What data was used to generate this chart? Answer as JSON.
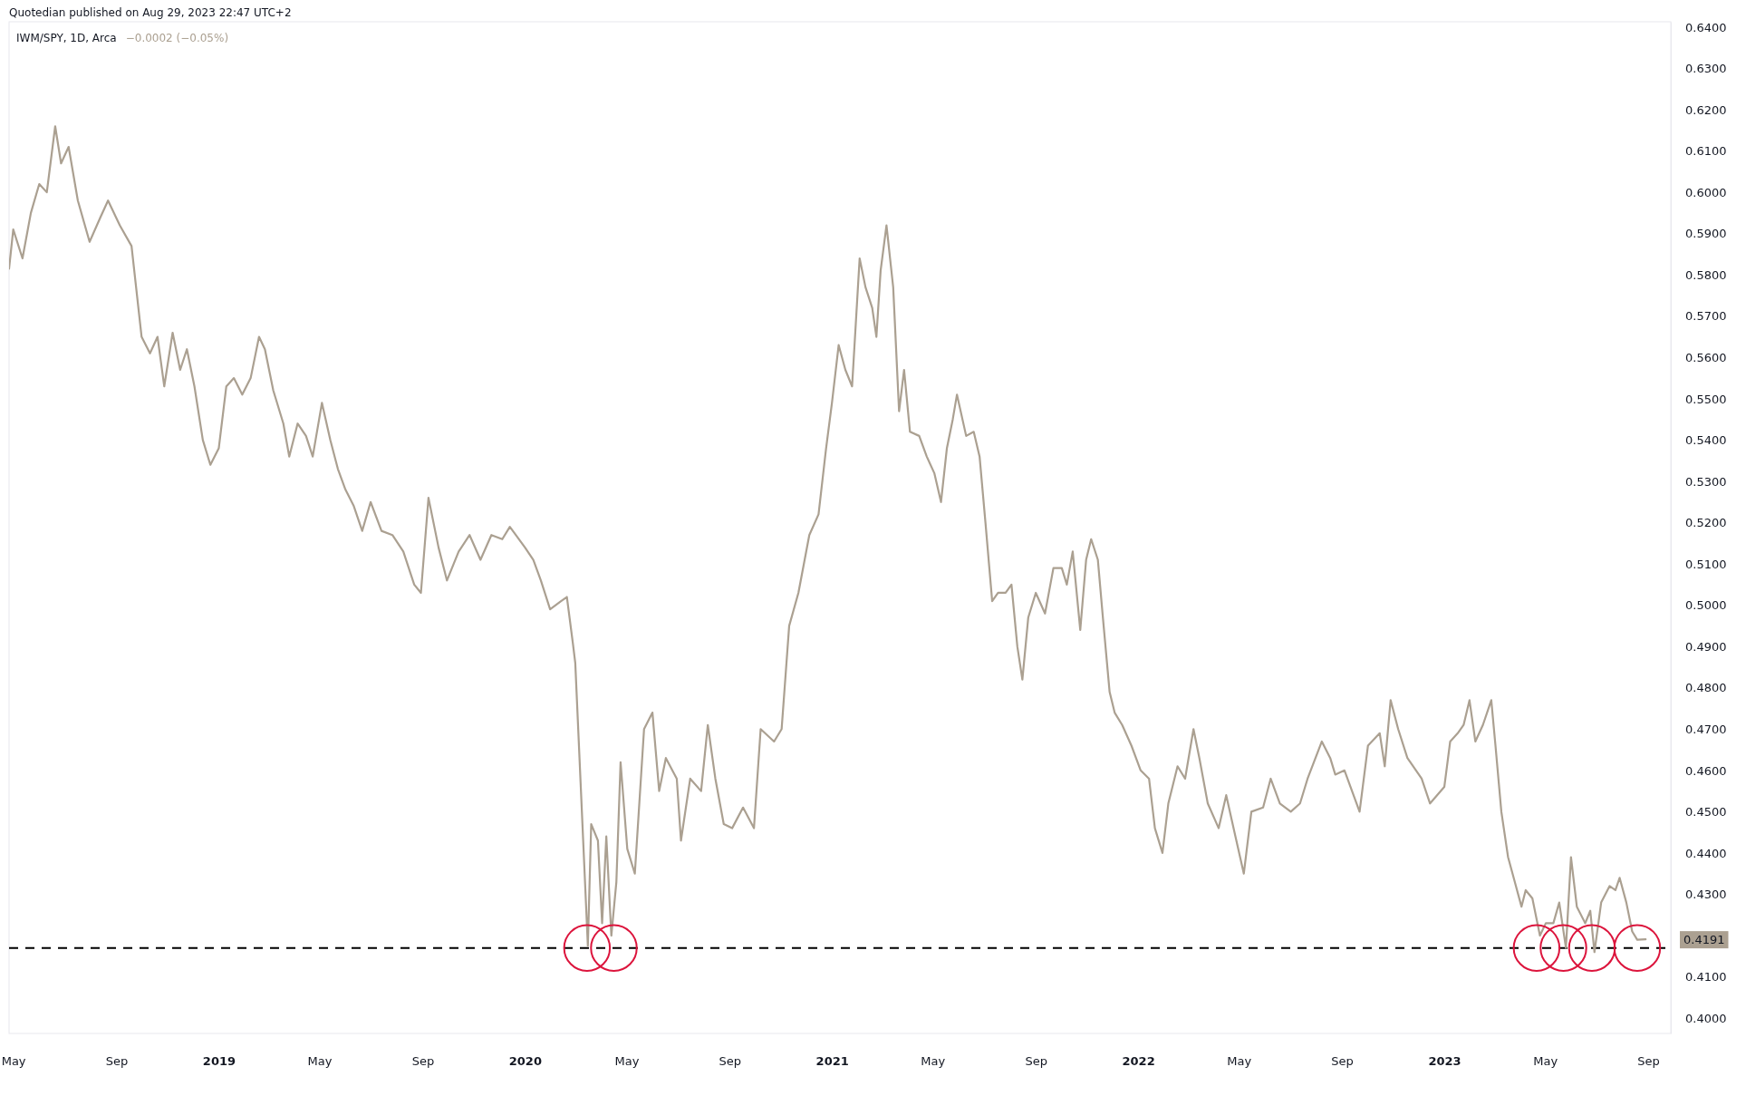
{
  "chart_data": {
    "type": "line",
    "title": "IWM/SPY, 1D, Arca",
    "subtitle": "−0.0002 (−0.05%)",
    "annotations": [
      "Quotedian published on Aug 29, 2023 22:47 UTC+2",
      "0.4191"
    ],
    "xlim": [
      "2018-04-26",
      "2023-09-28"
    ],
    "xticks": [
      {
        "value": "2018-05-01",
        "label": "May"
      },
      {
        "value": "2018-09-01",
        "label": "Sep"
      },
      {
        "value": "2019-01-01",
        "label": "2019"
      },
      {
        "value": "2019-05-01",
        "label": "May"
      },
      {
        "value": "2019-09-01",
        "label": "Sep"
      },
      {
        "value": "2020-01-01",
        "label": "2020"
      },
      {
        "value": "2020-05-01",
        "label": "May"
      },
      {
        "value": "2020-09-01",
        "label": "Sep"
      },
      {
        "value": "2021-01-01",
        "label": "2021"
      },
      {
        "value": "2021-05-01",
        "label": "May"
      },
      {
        "value": "2021-09-01",
        "label": "Sep"
      },
      {
        "value": "2022-01-01",
        "label": "2022"
      },
      {
        "value": "2022-05-01",
        "label": "May"
      },
      {
        "value": "2022-09-01",
        "label": "Sep"
      },
      {
        "value": "2023-01-01",
        "label": "2023"
      },
      {
        "value": "2023-05-01",
        "label": "May"
      },
      {
        "value": "2023-09-01",
        "label": "Sep"
      }
    ],
    "ylim": [
      0.3963,
      0.6413
    ],
    "yticks": [
      {
        "value": 0.4,
        "label": "0.4000"
      },
      {
        "value": 0.41,
        "label": "0.4100"
      },
      {
        "value": 0.43,
        "label": "0.4300"
      },
      {
        "value": 0.44,
        "label": "0.4400"
      },
      {
        "value": 0.45,
        "label": "0.4500"
      },
      {
        "value": 0.46,
        "label": "0.4600"
      },
      {
        "value": 0.47,
        "label": "0.4700"
      },
      {
        "value": 0.48,
        "label": "0.4800"
      },
      {
        "value": 0.49,
        "label": "0.4900"
      },
      {
        "value": 0.5,
        "label": "0.5000"
      },
      {
        "value": 0.51,
        "label": "0.5100"
      },
      {
        "value": 0.52,
        "label": "0.5200"
      },
      {
        "value": 0.53,
        "label": "0.5300"
      },
      {
        "value": 0.54,
        "label": "0.5400"
      },
      {
        "value": 0.55,
        "label": "0.5500"
      },
      {
        "value": 0.56,
        "label": "0.5600"
      },
      {
        "value": 0.57,
        "label": "0.5700"
      },
      {
        "value": 0.58,
        "label": "0.5800"
      },
      {
        "value": 0.59,
        "label": "0.5900"
      },
      {
        "value": 0.6,
        "label": "0.6000"
      },
      {
        "value": 0.61,
        "label": "0.6100"
      },
      {
        "value": 0.62,
        "label": "0.6200"
      },
      {
        "value": 0.63,
        "label": "0.6300"
      },
      {
        "value": 0.64,
        "label": "0.6400"
      }
    ],
    "grid": false,
    "ref_lines": [
      {
        "axis": "y",
        "value": 0.417,
        "color": "#000000",
        "line_style": "dashed"
      }
    ],
    "series": [
      {
        "color": "#aba091",
        "line_style": "solid",
        "marker": "none",
        "x": [
          "2018-04-26",
          "2018-05-01",
          "2018-05-12",
          "2018-05-22",
          "2018-06-01",
          "2018-06-10",
          "2018-06-20",
          "2018-06-27",
          "2018-07-06",
          "2018-07-17",
          "2018-07-31",
          "2018-08-13",
          "2018-08-22",
          "2018-09-05",
          "2018-09-19",
          "2018-10-01",
          "2018-10-11",
          "2018-10-20",
          "2018-10-28",
          "2018-11-07",
          "2018-11-16",
          "2018-11-24",
          "2018-12-03",
          "2018-12-13",
          "2018-12-22",
          "2019-01-01",
          "2019-01-10",
          "2019-01-19",
          "2019-01-29",
          "2019-02-08",
          "2019-02-18",
          "2019-02-25",
          "2019-03-07",
          "2019-03-19",
          "2019-03-26",
          "2019-04-05",
          "2019-04-15",
          "2019-04-23",
          "2019-05-04",
          "2019-05-14",
          "2019-05-23",
          "2019-06-01",
          "2019-06-11",
          "2019-06-21",
          "2019-07-01",
          "2019-07-14",
          "2019-07-27",
          "2019-08-09",
          "2019-08-22",
          "2019-08-30",
          "2019-09-08",
          "2019-09-20",
          "2019-09-30",
          "2019-10-14",
          "2019-10-27",
          "2019-11-09",
          "2019-11-22",
          "2019-12-05",
          "2019-12-14",
          "2020-01-01",
          "2020-01-11",
          "2020-01-20",
          "2020-01-31",
          "2020-02-13",
          "2020-02-20",
          "2020-02-27",
          "2020-03-01",
          "2020-03-16",
          "2020-03-20",
          "2020-03-28",
          "2020-04-02",
          "2020-04-07",
          "2020-04-13",
          "2020-04-19",
          "2020-04-24",
          "2020-05-02",
          "2020-05-11",
          "2020-05-22",
          "2020-06-01",
          "2020-06-09",
          "2020-06-17",
          "2020-06-30",
          "2020-07-05",
          "2020-07-16",
          "2020-07-29",
          "2020-08-06",
          "2020-08-15",
          "2020-08-25",
          "2020-09-04",
          "2020-09-17",
          "2020-09-30",
          "2020-10-08",
          "2020-10-24",
          "2020-11-02",
          "2020-11-11",
          "2020-11-22",
          "2020-12-05",
          "2020-12-16",
          "2020-12-25",
          "2021-01-01",
          "2021-01-09",
          "2021-01-17",
          "2021-01-25",
          "2021-02-03",
          "2021-02-10",
          "2021-02-18",
          "2021-02-23",
          "2021-02-28",
          "2021-03-07",
          "2021-03-15",
          "2021-03-22",
          "2021-03-28",
          "2021-04-04",
          "2021-04-15",
          "2021-04-24",
          "2021-05-03",
          "2021-05-11",
          "2021-05-18",
          "2021-05-25",
          "2021-05-30",
          "2021-06-10",
          "2021-06-19",
          "2021-06-26",
          "2021-07-03",
          "2021-07-11",
          "2021-07-18",
          "2021-07-27",
          "2021-08-03",
          "2021-08-10",
          "2021-08-16",
          "2021-08-23",
          "2021-09-01",
          "2021-09-12",
          "2021-09-22",
          "2021-10-02",
          "2021-10-08",
          "2021-10-15",
          "2021-10-24",
          "2021-10-31",
          "2021-11-06",
          "2021-11-14",
          "2021-11-20",
          "2021-11-28",
          "2021-12-04",
          "2021-12-13",
          "2021-12-24",
          "2022-01-04",
          "2022-01-14",
          "2022-01-21",
          "2022-01-30",
          "2022-02-06",
          "2022-02-17",
          "2022-02-26",
          "2022-03-08",
          "2022-03-15",
          "2022-03-25",
          "2022-04-07",
          "2022-04-16",
          "2022-04-27",
          "2022-05-07",
          "2022-05-16",
          "2022-05-30",
          "2022-06-08",
          "2022-06-19",
          "2022-07-02",
          "2022-07-13",
          "2022-07-22",
          "2022-08-08",
          "2022-08-18",
          "2022-08-24",
          "2022-09-04",
          "2022-09-22",
          "2022-10-02",
          "2022-10-16",
          "2022-10-22",
          "2022-10-29",
          "2022-11-07",
          "2022-11-18",
          "2022-12-05",
          "2022-12-15",
          "2023-01-01",
          "2023-01-08",
          "2023-01-17",
          "2023-01-24",
          "2023-01-31",
          "2023-02-07",
          "2023-02-16",
          "2023-02-26",
          "2023-03-03",
          "2023-03-10",
          "2023-03-18",
          "2023-03-26",
          "2023-04-03",
          "2023-04-08",
          "2023-04-16",
          "2023-04-25",
          "2023-05-02",
          "2023-05-11",
          "2023-05-18",
          "2023-05-26",
          "2023-06-01",
          "2023-06-08",
          "2023-06-18",
          "2023-06-24",
          "2023-06-29",
          "2023-07-07",
          "2023-07-17",
          "2023-07-24",
          "2023-07-29",
          "2023-08-06",
          "2023-08-13",
          "2023-08-19",
          "2023-08-29"
        ],
        "values": [
          0.5815,
          0.591,
          0.584,
          0.595,
          0.602,
          0.6,
          0.616,
          0.607,
          0.611,
          0.598,
          0.588,
          0.594,
          0.598,
          0.592,
          0.587,
          0.565,
          0.561,
          0.565,
          0.553,
          0.566,
          0.557,
          0.562,
          0.553,
          0.54,
          0.534,
          0.538,
          0.553,
          0.555,
          0.551,
          0.555,
          0.565,
          0.562,
          0.552,
          0.544,
          0.536,
          0.544,
          0.541,
          0.536,
          0.549,
          0.54,
          0.533,
          0.528,
          0.524,
          0.518,
          0.525,
          0.518,
          0.517,
          0.513,
          0.505,
          0.503,
          0.526,
          0.514,
          0.506,
          0.513,
          0.517,
          0.511,
          0.517,
          0.516,
          0.519,
          0.514,
          0.511,
          0.506,
          0.499,
          0.501,
          0.502,
          0.491,
          0.486,
          0.4175,
          0.447,
          0.443,
          0.423,
          0.444,
          0.42,
          0.433,
          0.462,
          0.441,
          0.435,
          0.47,
          0.474,
          0.455,
          0.463,
          0.458,
          0.443,
          0.458,
          0.455,
          0.471,
          0.458,
          0.447,
          0.446,
          0.451,
          0.446,
          0.47,
          0.467,
          0.47,
          0.495,
          0.503,
          0.517,
          0.522,
          0.538,
          0.549,
          0.563,
          0.557,
          0.553,
          0.584,
          0.577,
          0.572,
          0.565,
          0.581,
          0.592,
          0.577,
          0.547,
          0.557,
          0.542,
          0.541,
          0.536,
          0.532,
          0.525,
          0.538,
          0.545,
          0.551,
          0.541,
          0.542,
          0.536,
          0.52,
          0.501,
          0.503,
          0.503,
          0.505,
          0.49,
          0.482,
          0.497,
          0.503,
          0.498,
          0.509,
          0.509,
          0.505,
          0.513,
          0.494,
          0.511,
          0.516,
          0.511,
          0.497,
          0.479,
          0.474,
          0.471,
          0.466,
          0.46,
          0.458,
          0.446,
          0.44,
          0.452,
          0.461,
          0.458,
          0.47,
          0.463,
          0.452,
          0.446,
          0.454,
          0.444,
          0.435,
          0.45,
          0.451,
          0.458,
          0.452,
          0.45,
          0.452,
          0.458,
          0.467,
          0.463,
          0.459,
          0.46,
          0.45,
          0.466,
          0.469,
          0.461,
          0.477,
          0.47,
          0.463,
          0.458,
          0.452,
          0.456,
          0.467,
          0.469,
          0.471,
          0.477,
          0.467,
          0.471,
          0.477,
          0.466,
          0.45,
          0.439,
          0.433,
          0.427,
          0.431,
          0.429,
          0.42,
          0.423,
          0.423,
          0.428,
          0.417,
          0.439,
          0.427,
          0.423,
          0.426,
          0.416,
          0.428,
          0.432,
          0.431,
          0.434,
          0.428,
          0.421,
          0.419,
          0.4191
        ]
      },
      {
        "type": "scatter",
        "color": "#dc143c",
        "marker": "circle",
        "x": [
          "2020-03-15",
          "2020-04-16",
          "2023-04-21",
          "2023-05-23",
          "2023-06-26",
          "2023-08-19"
        ],
        "values": [
          0.417,
          0.417,
          0.417,
          0.417,
          0.417,
          0.417
        ]
      }
    ]
  }
}
